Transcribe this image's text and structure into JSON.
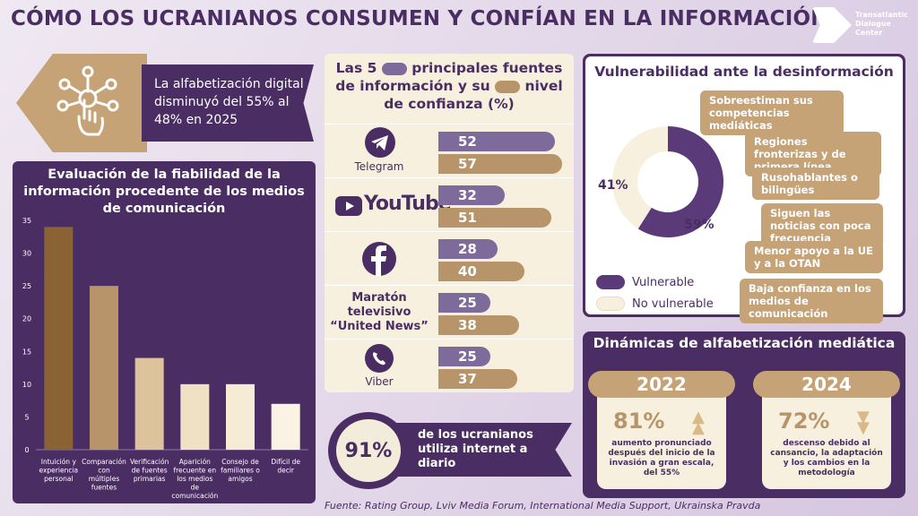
{
  "title": "CÓMO LOS UCRANIANOS CONSUMEN Y CONFÍAN EN LA INFORMACIÓN",
  "logo": {
    "text": "Transatlantic Dialogue Center",
    "icon": "tdc-logo"
  },
  "banner": {
    "text": "La alfabetización digital disminuyó del 55% al 48% en 2025",
    "icon": "digital-hand-icon"
  },
  "chart_data": {
    "type": "bar",
    "title": "Evaluación de la fiabilidad de la información procedente de los medios de comunicación",
    "categories": [
      "Intuición y experiencia personal",
      "Comparación con múltiples fuentes",
      "Verificación de fuentes primarias",
      "Aparición frecuente en los medios de comunicación",
      "Consejo de familiares o amigos",
      "Difícil de decir"
    ],
    "values": [
      34,
      25,
      14,
      10,
      10,
      7
    ],
    "ylim": [
      0,
      35
    ],
    "yticks": [
      0,
      5,
      10,
      15,
      20,
      25,
      30,
      35
    ],
    "colors": [
      "#8b6233",
      "#b8946a",
      "#dcc39c",
      "#efe1c3",
      "#f6ecd6",
      "#faf3e3"
    ],
    "grid": false,
    "xlabel": "",
    "ylabel": ""
  },
  "sources": {
    "title_parts": [
      "Las 5",
      "principales fuentes de información y su",
      "nivel de confianza (%)"
    ],
    "items": [
      {
        "name": "Telegram",
        "icon": "telegram-icon",
        "share": 52,
        "trust": 57
      },
      {
        "name": "YouTube",
        "icon": "youtube-icon",
        "share": 32,
        "trust": 51
      },
      {
        "name": "",
        "icon": "facebook-icon",
        "share": 28,
        "trust": 40
      },
      {
        "name": "Maratón televisivo “United News”",
        "icon": "",
        "share": 25,
        "trust": 38
      },
      {
        "name": "Viber",
        "icon": "viber-icon",
        "share": 25,
        "trust": 37
      }
    ]
  },
  "internet": {
    "value": "91%",
    "text": "de los ucranianos utiliza internet a diario"
  },
  "vulnerability": {
    "title": "Vulnerabilidad ante la desinformación",
    "vulnerable_pct": 59,
    "not_vulnerable_pct": 41,
    "vulnerable_label": "59%",
    "not_vulnerable_label": "41%",
    "legend": [
      "Vulnerable",
      "No vulnerable"
    ],
    "colors": {
      "vulnerable": "#5a3a78",
      "not_vulnerable": "#f8f0de"
    },
    "tags": [
      "Sobreestiman sus competencias mediáticas",
      "Regiones fronterizas y de primera línea",
      "Rusohablantes o bilingües",
      "Siguen las noticias con poca frecuencia",
      "Menor apoyo a la UE y a la OTAN",
      "Baja confianza en los medios de comunicación"
    ]
  },
  "dynamics": {
    "title": "Dinámicas de alfabetización mediática",
    "cards": [
      {
        "year": "2022",
        "pct": "81%",
        "desc": "aumento pronunciado después del inicio de la invasión a gran escala, del 55%",
        "trend": "up"
      },
      {
        "year": "2024",
        "pct": "72%",
        "desc": "descenso debido al cansancio, la adaptación y los cambios en la metodología",
        "trend": "down"
      }
    ]
  },
  "source": "Fuente: Rating Group, Lviv Media Forum, International Media Support, Ukrainska Pravda"
}
